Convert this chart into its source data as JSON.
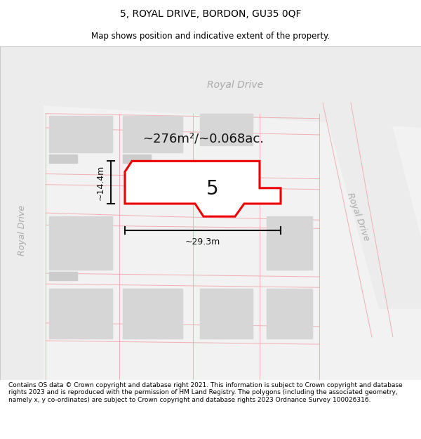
{
  "title": "5, ROYAL DRIVE, BORDON, GU35 0QF",
  "subtitle": "Map shows position and indicative extent of the property.",
  "footer": "Contains OS data © Crown copyright and database right 2021. This information is subject to Crown copyright and database rights 2023 and is reproduced with the permission of HM Land Registry. The polygons (including the associated geometry, namely x, y co-ordinates) are subject to Crown copyright and database rights 2023 Ordnance Survey 100026316.",
  "area_label": "~276m²/~0.068ac.",
  "width_label": "~29.3m",
  "height_label": "~14.4m",
  "number_label": "5",
  "bg_color": "#f2f2f2",
  "road_color": "#e8e8e8",
  "building_color": "#d6d6d6",
  "plot_fill": "#ffffff",
  "plot_stroke": "#ee0000",
  "road_line_color": "#f0b0b0",
  "road_label_color": "#aaaaaa",
  "dim_color": "#111111",
  "border_color": "#cccccc",
  "title_fontsize": 10,
  "subtitle_fontsize": 8.5,
  "footer_fontsize": 6.5,
  "area_fontsize": 13,
  "dim_fontsize": 9,
  "road_label_fontsize": 10,
  "number_fontsize": 20
}
